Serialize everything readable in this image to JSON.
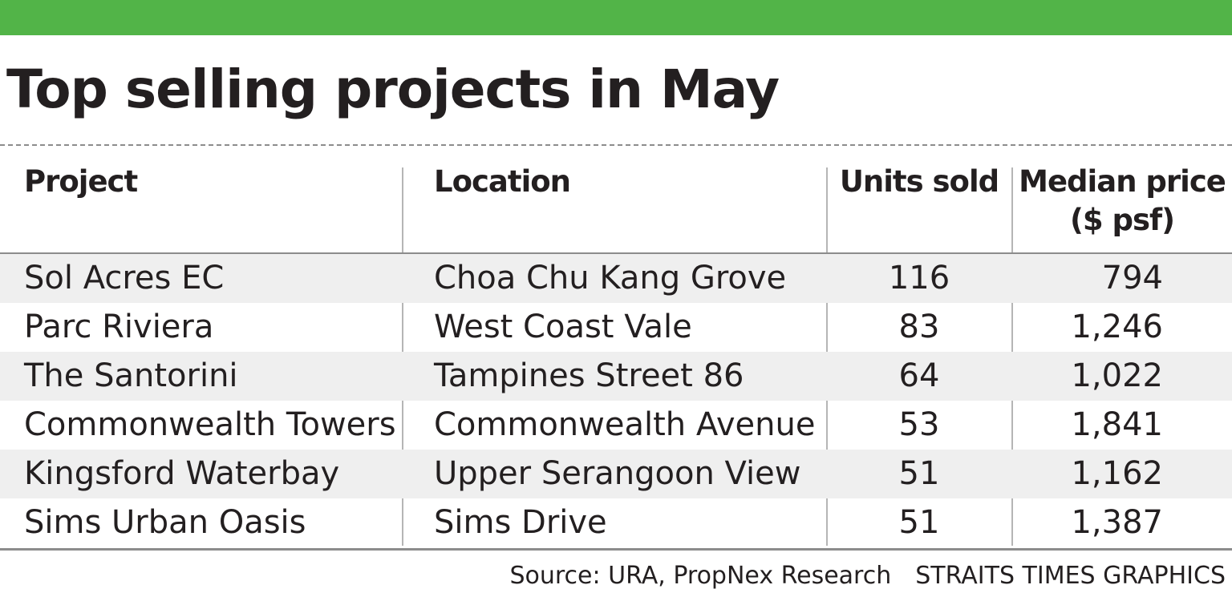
{
  "title": "Top selling projects in May",
  "colors": {
    "top_bar": "#52b448",
    "row_shade": "#efefef",
    "rule": "#8c8c8c"
  },
  "chart_data": {
    "type": "table",
    "title": "Top selling projects in May",
    "columns": [
      "Project",
      "Location",
      "Units sold",
      "Median price\n($ psf)"
    ],
    "rows": [
      [
        "Sol Acres EC",
        "Choa Chu Kang Grove",
        "116",
        "794"
      ],
      [
        "Parc Riviera",
        "West Coast Vale",
        "83",
        "1,246"
      ],
      [
        "The Santorini",
        "Tampines Street 86",
        "64",
        "1,022"
      ],
      [
        "Commonwealth Towers",
        "Commonwealth Avenue",
        "53",
        "1,841"
      ],
      [
        "Kingsford Waterbay",
        "Upper Serangoon View",
        "51",
        "1,162"
      ],
      [
        "Sims Urban Oasis",
        "Sims Drive",
        "51",
        "1,387"
      ]
    ]
  },
  "footer": {
    "source": "Source: URA, PropNex Research",
    "credit": "STRAITS TIMES GRAPHICS"
  }
}
